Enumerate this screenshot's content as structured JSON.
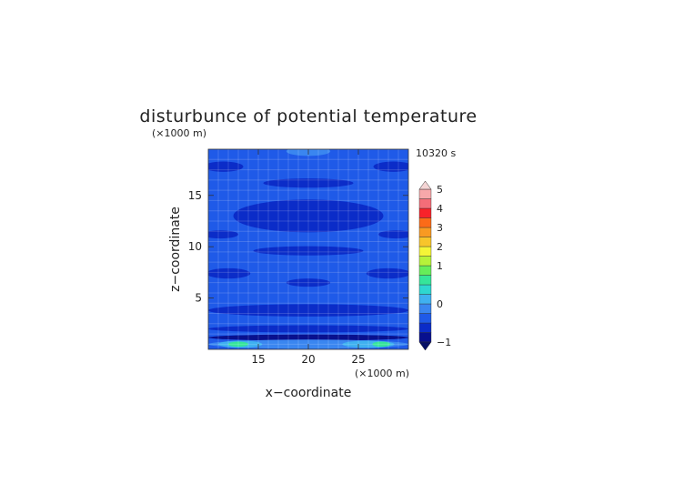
{
  "chart_data": {
    "type": "heatmap",
    "title": "disturbunce of potential temperature",
    "time_label": "10320 s",
    "xlabel": "x−coordinate",
    "ylabel": "z−coordinate",
    "x_unit": "(×1000 m)",
    "y_unit": "(×1000 m)",
    "xlim": [
      10,
      30
    ],
    "ylim": [
      0,
      19.5
    ],
    "x_ticks": [
      15,
      20,
      25
    ],
    "y_ticks": [
      5,
      10,
      15
    ],
    "x_tick_labels": [
      "15",
      "20",
      "25"
    ],
    "y_tick_labels": [
      "5",
      "10",
      "15"
    ],
    "grid": true,
    "colorbar": {
      "levels": [
        -1,
        -0.75,
        -0.5,
        -0.25,
        0,
        0.25,
        0.5,
        0.75,
        1,
        1.5,
        2,
        2.5,
        3,
        3.5,
        4,
        4.5,
        5
      ],
      "labels": [
        "−1",
        "0",
        "1",
        "2",
        "3",
        "4",
        "5"
      ],
      "label_values": [
        -1,
        0,
        1,
        2,
        3,
        4,
        5
      ],
      "colors": [
        "#08108e",
        "#0b2cc8",
        "#1f5ae8",
        "#3a86f0",
        "#3fb1f0",
        "#2ed7d0",
        "#35e59a",
        "#66ed5a",
        "#b6f23a",
        "#f5f537",
        "#f8c52b",
        "#f99a22",
        "#fb6b18",
        "#f8222a",
        "#f46d78",
        "#f7a8aa"
      ],
      "min_arrow_color": "#061066",
      "max_arrow_color": "#f4d4d4"
    },
    "background_value": -0.35,
    "features": [
      {
        "x": 20,
        "z": 19.3,
        "rx": 2.2,
        "rz": 0.45,
        "value": -0.1
      },
      {
        "x": 11.5,
        "z": 17.8,
        "rx": 2.0,
        "rz": 0.5,
        "value": -0.55
      },
      {
        "x": 28.5,
        "z": 17.8,
        "rx": 2.0,
        "rz": 0.5,
        "value": -0.55
      },
      {
        "x": 20,
        "z": 16.2,
        "rx": 4.5,
        "rz": 0.45,
        "value": -0.55
      },
      {
        "x": 20,
        "z": 13.0,
        "rx": 7.5,
        "rz": 1.6,
        "value": -0.55
      },
      {
        "x": 11.2,
        "z": 11.2,
        "rx": 1.8,
        "rz": 0.4,
        "value": -0.55
      },
      {
        "x": 28.8,
        "z": 11.2,
        "rx": 1.8,
        "rz": 0.4,
        "value": -0.55
      },
      {
        "x": 20,
        "z": 9.6,
        "rx": 5.5,
        "rz": 0.45,
        "value": -0.55
      },
      {
        "x": 12.0,
        "z": 7.4,
        "rx": 2.2,
        "rz": 0.5,
        "value": -0.55
      },
      {
        "x": 28.0,
        "z": 7.4,
        "rx": 2.2,
        "rz": 0.5,
        "value": -0.55
      },
      {
        "x": 20,
        "z": 6.5,
        "rx": 2.2,
        "rz": 0.4,
        "value": -0.55
      },
      {
        "x": 20,
        "z": 3.8,
        "rx": 10,
        "rz": 0.6,
        "value": -0.55
      },
      {
        "x": 20,
        "z": 2.0,
        "rx": 10,
        "rz": 0.35,
        "value": -0.55
      },
      {
        "x": 20,
        "z": 1.15,
        "rx": 10,
        "rz": 0.3,
        "value": -0.9
      },
      {
        "x": 20,
        "z": 0.5,
        "rx": 10,
        "rz": 0.45,
        "value": -0.2
      },
      {
        "x": 13.2,
        "z": 0.5,
        "rx": 2.2,
        "rz": 0.35,
        "value": 0.1
      },
      {
        "x": 26.0,
        "z": 0.5,
        "rx": 2.6,
        "rz": 0.35,
        "value": 0.1
      },
      {
        "x": 13.0,
        "z": 0.5,
        "rx": 1.0,
        "rz": 0.25,
        "value": 0.6
      },
      {
        "x": 27.3,
        "z": 0.5,
        "rx": 0.9,
        "rz": 0.25,
        "value": 0.6
      }
    ]
  }
}
